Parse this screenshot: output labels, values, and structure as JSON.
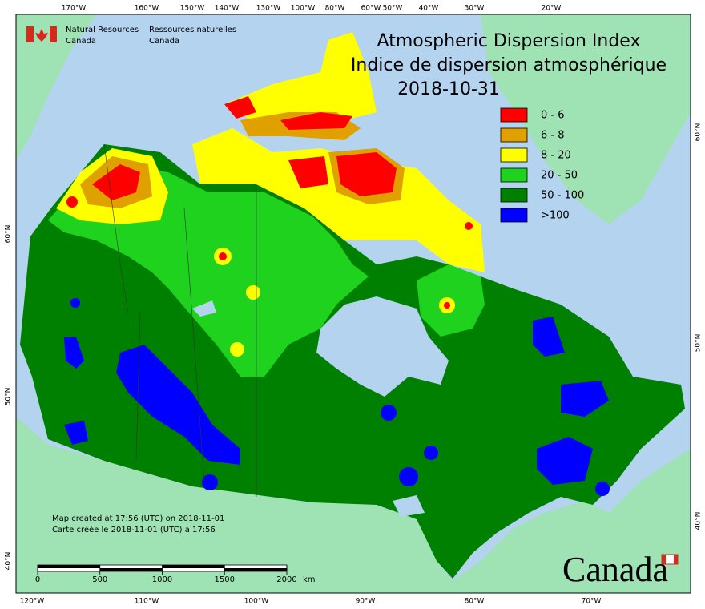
{
  "agency": {
    "en": [
      "Natural Resources",
      "Canada"
    ],
    "fr": [
      "Ressources naturelles",
      "Canada"
    ]
  },
  "title": {
    "en": "Atmospheric Dispersion Index",
    "fr": "Indice de dispersion atmosphérique",
    "date": "2018-10-31"
  },
  "legend": [
    {
      "label": "0 - 6",
      "color": "#ff0000"
    },
    {
      "label": "6 - 8",
      "color": "#e0a000"
    },
    {
      "label": "8 - 20",
      "color": "#ffff00"
    },
    {
      "label": "20 - 50",
      "color": "#1ed21e"
    },
    {
      "label": "50 - 100",
      "color": "#008000"
    },
    {
      "label": ">100",
      "color": "#0000ff"
    }
  ],
  "top_labels": [
    "170°W",
    "160°W",
    "150°W",
    "140°W",
    "130°W",
    "100°W",
    "80°W",
    "60°W",
    "50°W",
    "40°W",
    "30°W",
    "20°W"
  ],
  "bottom_labels": [
    "120°W",
    "110°W",
    "100°W",
    "90°W",
    "80°W",
    "70°W"
  ],
  "left_labels": [
    "60°N",
    "50°N",
    "40°N"
  ],
  "right_labels": [
    "60°N",
    "50°N",
    "40°N"
  ],
  "credit": [
    "Map created at 17:56 (UTC) on 2018-11-01",
    "Carte créée le 2018-11-01 (UTC) à 17:56"
  ],
  "scale": {
    "ticks": [
      0,
      500,
      1000,
      1500,
      2000
    ],
    "unit": "km"
  },
  "wordmark": "Canada"
}
